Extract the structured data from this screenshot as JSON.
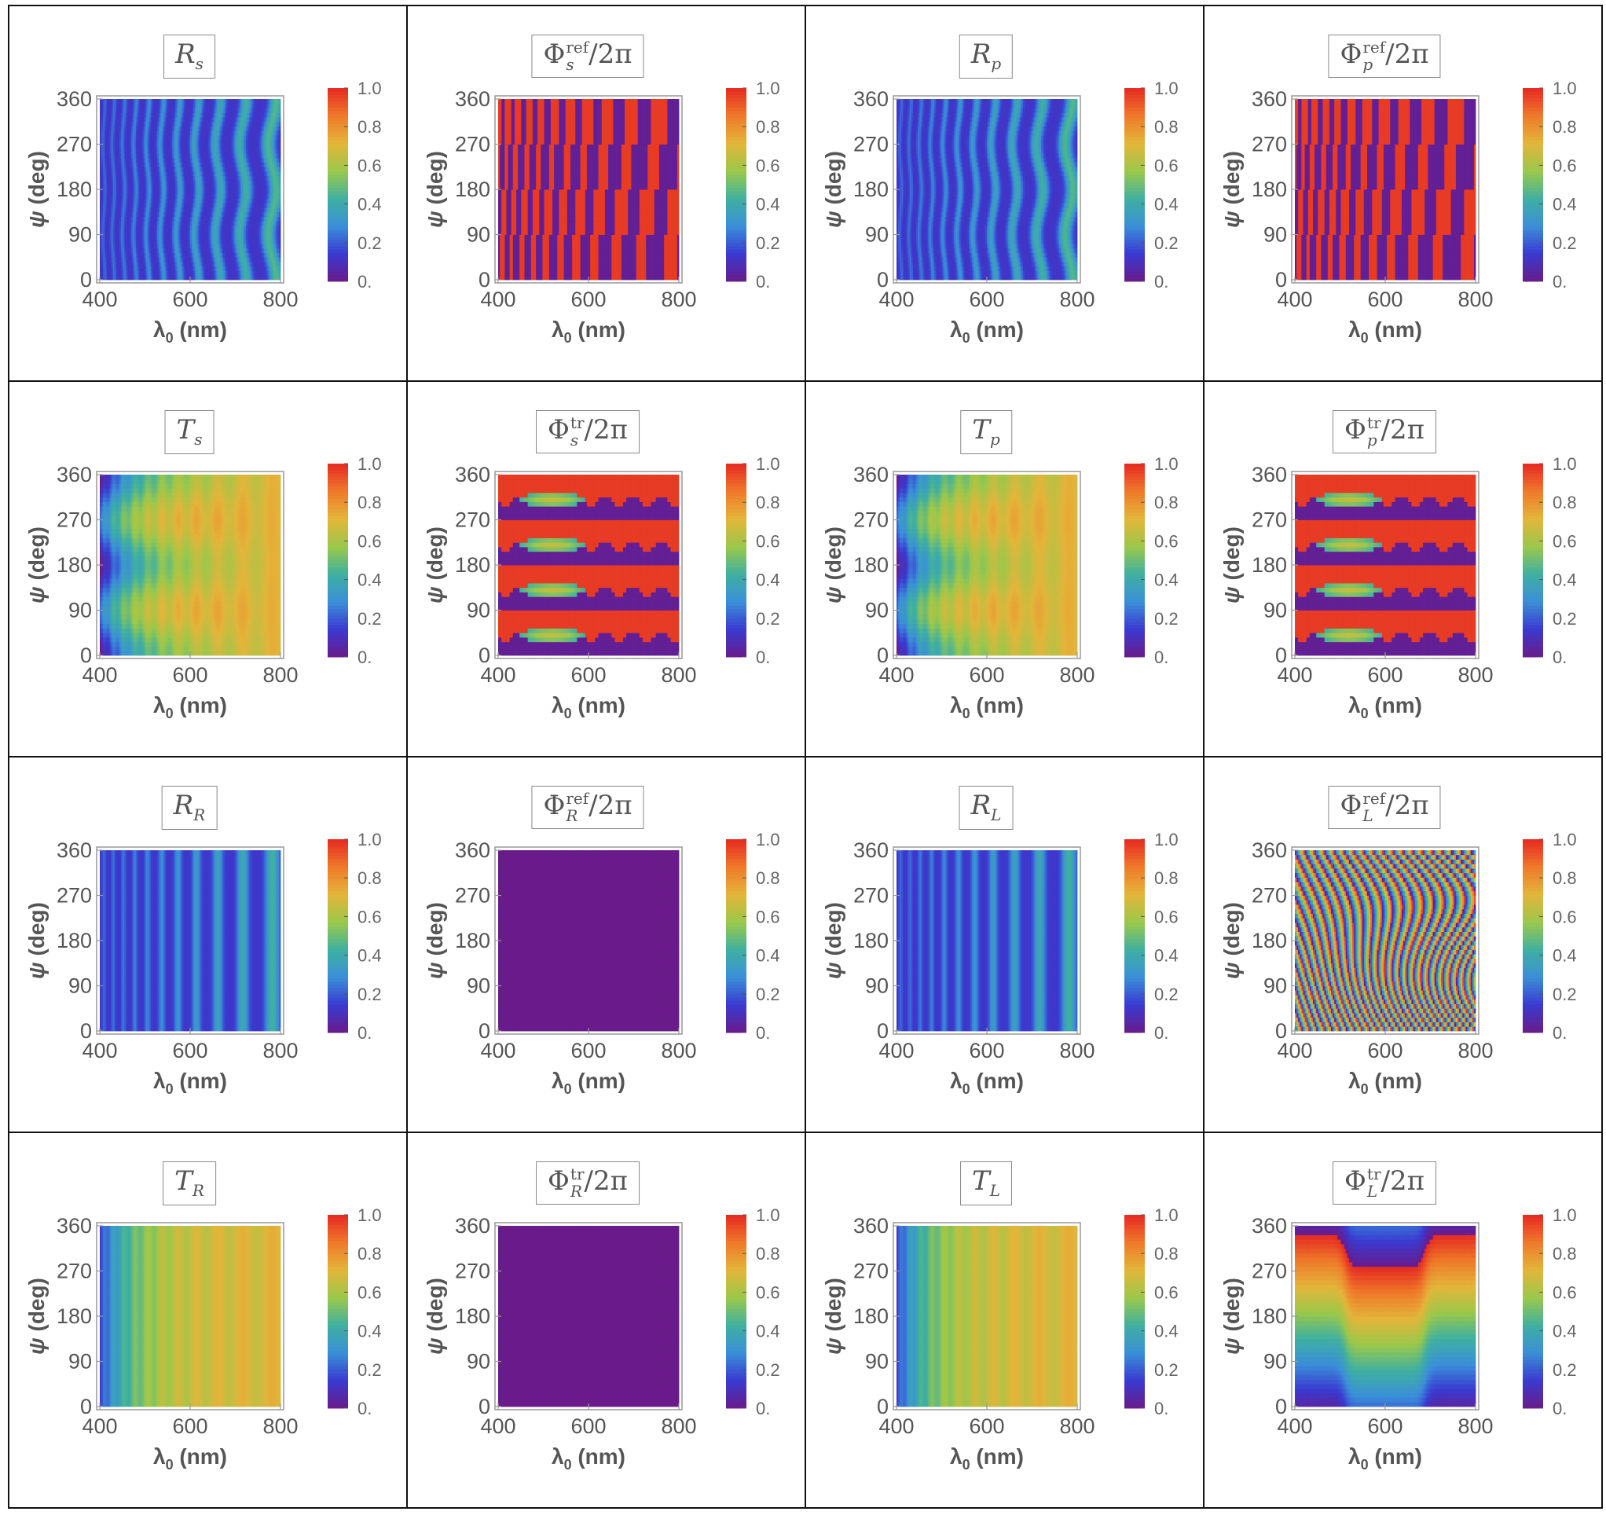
{
  "chart_data": {
    "type": "heatmap",
    "layout": "4x4 panel grid",
    "xlabel": "λ0 (nm)",
    "ylabel": "ψ (deg)",
    "xlim": [
      400,
      800
    ],
    "ylim": [
      0,
      360
    ],
    "xticks": [
      "400",
      "600",
      "800"
    ],
    "yticks": [
      "0",
      "90",
      "180",
      "270",
      "360"
    ],
    "colorbar": {
      "range": [
        0,
        1
      ],
      "ticks": [
        "0.",
        "0.2",
        "0.4",
        "0.6",
        "0.8",
        "1.0"
      ],
      "colormap": [
        "#6a1b8a",
        "#3a3ad0",
        "#3a8fd8",
        "#3fb0a0",
        "#9bc84a",
        "#e3b53a",
        "#ef7a2a",
        "#e52a22"
      ]
    },
    "panels": [
      {
        "id": "Rs",
        "title": "R_s",
        "pattern": "refl-fringes",
        "base_value": 0.15
      },
      {
        "id": "Phi_s_ref",
        "title": "Φ_s^ref/2π",
        "pattern": "phase-blocks",
        "base_value": 0.5
      },
      {
        "id": "Rp",
        "title": "R_p",
        "pattern": "refl-fringes",
        "base_value": 0.15
      },
      {
        "id": "Phi_p_ref",
        "title": "Φ_p^ref/2π",
        "pattern": "phase-blocks",
        "base_value": 0.5
      },
      {
        "id": "Ts",
        "title": "T_s",
        "pattern": "trans-gradient",
        "base_value": 0.6
      },
      {
        "id": "Phi_s_tr",
        "title": "Φ_s^tr/2π",
        "pattern": "phase-bands",
        "base_value": 0.5
      },
      {
        "id": "Tp",
        "title": "T_p",
        "pattern": "trans-gradient",
        "base_value": 0.6
      },
      {
        "id": "Phi_p_tr",
        "title": "Φ_p^tr/2π",
        "pattern": "phase-bands",
        "base_value": 0.5
      },
      {
        "id": "RR",
        "title": "R_R",
        "pattern": "refl-vertical",
        "base_value": 0.15
      },
      {
        "id": "Phi_R_ref",
        "title": "Φ_R^ref/2π",
        "pattern": "uniform",
        "base_value": 0.0
      },
      {
        "id": "RL",
        "title": "R_L",
        "pattern": "refl-vertical",
        "base_value": 0.15
      },
      {
        "id": "Phi_L_ref",
        "title": "Φ_L^ref/2π",
        "pattern": "rainbow-diagonal",
        "base_value": 0.5
      },
      {
        "id": "TR",
        "title": "T_R",
        "pattern": "trans-vertical",
        "base_value": 0.6
      },
      {
        "id": "Phi_R_tr",
        "title": "Φ_R^tr/2π",
        "pattern": "uniform",
        "base_value": 0.0
      },
      {
        "id": "TL",
        "title": "T_L",
        "pattern": "trans-vertical",
        "base_value": 0.6
      },
      {
        "id": "Phi_L_tr",
        "title": "Φ_L^tr/2π",
        "pattern": "rainbow-steps",
        "base_value": 0.5
      }
    ]
  },
  "labels": {
    "phi": "Φ",
    "over2pi": "/2π",
    "ref": "ref",
    "tr": "tr"
  }
}
